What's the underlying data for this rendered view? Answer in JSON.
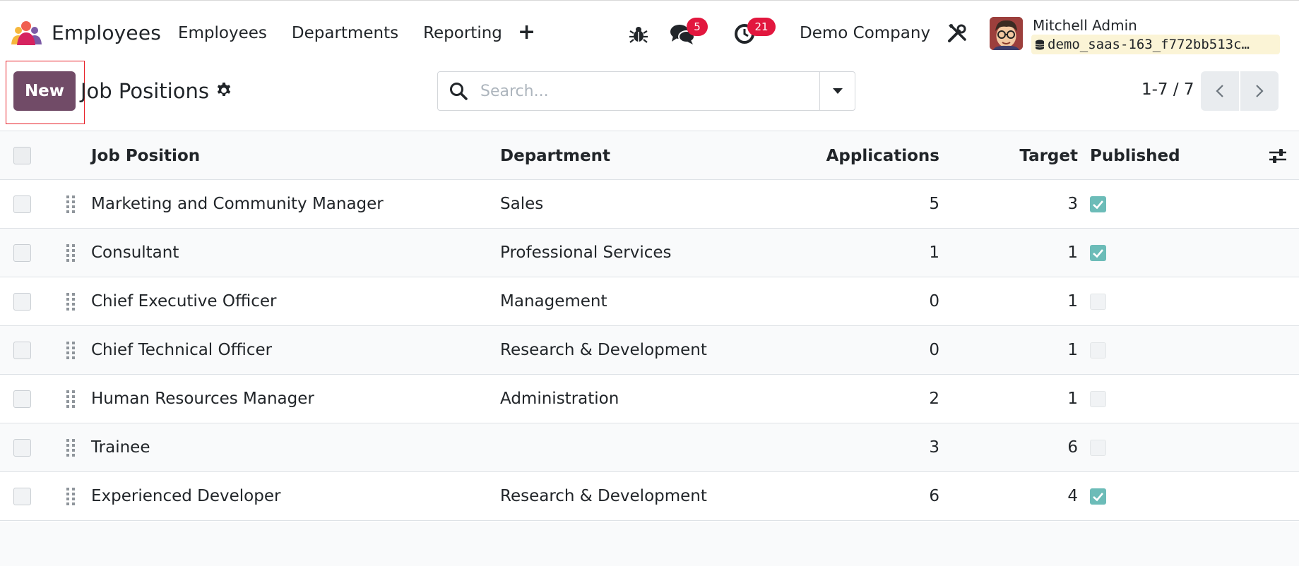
{
  "navbar": {
    "app_name": "Employees",
    "menu": [
      "Employees",
      "Departments",
      "Reporting"
    ],
    "plus": "+",
    "chat_badge": "5",
    "activity_badge": "21",
    "company": "Demo Company",
    "user_name": "Mitchell Admin",
    "db_name": "demo_saas-163_f772bb513c…"
  },
  "control": {
    "new_label": "New",
    "title": "Job Positions",
    "search_placeholder": "Search...",
    "pager": "1-7 / 7"
  },
  "table": {
    "headers": {
      "job_position": "Job Position",
      "department": "Department",
      "applications": "Applications",
      "target": "Target",
      "published": "Published"
    },
    "rows": [
      {
        "name": "Marketing and Community Manager",
        "department": "Sales",
        "applications": "5",
        "target": "3",
        "published": true
      },
      {
        "name": "Consultant",
        "department": "Professional Services",
        "applications": "1",
        "target": "1",
        "published": true
      },
      {
        "name": "Chief Executive Officer",
        "department": "Management",
        "applications": "0",
        "target": "1",
        "published": false
      },
      {
        "name": "Chief Technical Officer",
        "department": "Research & Development",
        "applications": "0",
        "target": "1",
        "published": false
      },
      {
        "name": "Human Resources Manager",
        "department": "Administration",
        "applications": "2",
        "target": "1",
        "published": false
      },
      {
        "name": "Trainee",
        "department": "",
        "applications": "3",
        "target": "6",
        "published": false
      },
      {
        "name": "Experienced Developer",
        "department": "Research & Development",
        "applications": "6",
        "target": "4",
        "published": true
      }
    ]
  },
  "colors": {
    "primary": "#714b67",
    "badge": "#e2173e",
    "published_check": "#6cbcb8",
    "highlight_outline": "#e8222a"
  },
  "icons": [
    "employees-app-icon",
    "bug-icon",
    "chat-icon",
    "clock-icon",
    "tools-icon",
    "database-icon",
    "gear-icon",
    "search-icon",
    "caret-down-icon",
    "chevron-left-icon",
    "chevron-right-icon",
    "drag-handle-icon",
    "optional-columns-icon"
  ]
}
